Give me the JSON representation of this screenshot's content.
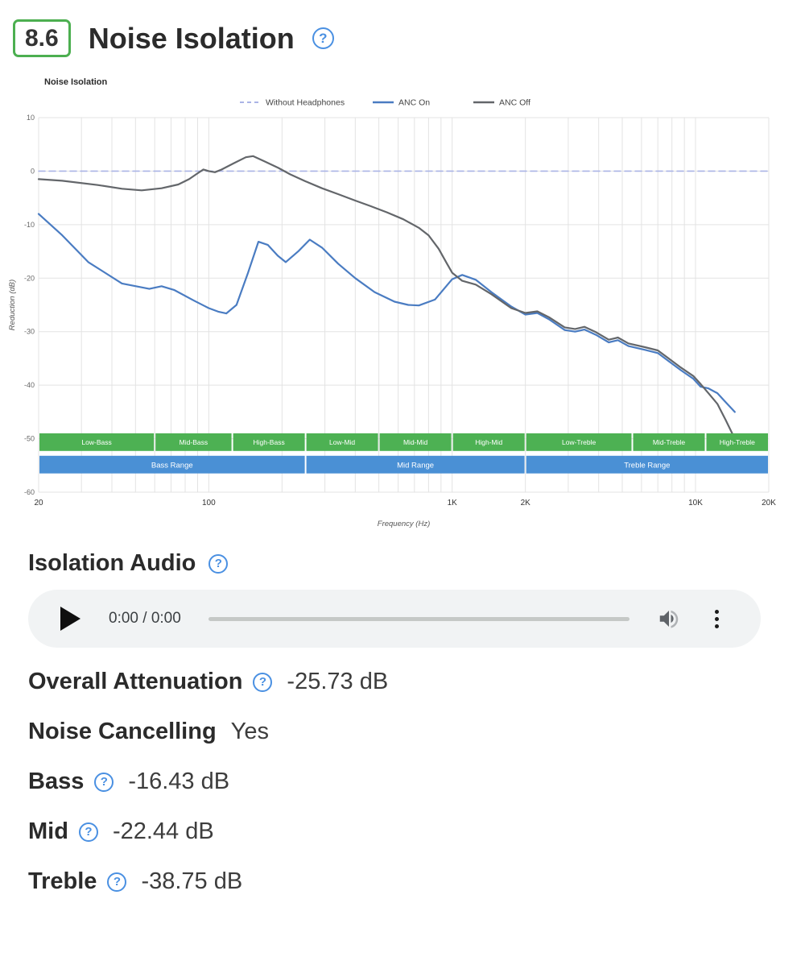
{
  "header": {
    "score": "8.6",
    "title": "Noise Isolation"
  },
  "icons": {
    "help_glyph": "?",
    "play": "play-triangle-icon",
    "volume": "volume-up-icon",
    "menu": "kebab-menu-icon"
  },
  "audio": {
    "title": "Isolation Audio",
    "time": "0:00 / 0:00"
  },
  "stats": {
    "rows": [
      {
        "label": "Overall Attenuation",
        "value": "-25.73 dB",
        "help": true
      },
      {
        "label": "Noise Cancelling",
        "value": "Yes",
        "help": false
      },
      {
        "label": "Bass",
        "value": "-16.43 dB",
        "help": true
      },
      {
        "label": "Mid",
        "value": "-22.44 dB",
        "help": true
      },
      {
        "label": "Treble",
        "value": "-38.75 dB",
        "help": true
      }
    ]
  },
  "colors": {
    "score_green": "#4caf50",
    "help_blue": "#4a90e2",
    "band_green": "#4db153",
    "band_blue": "#4a90d5",
    "anc_on": "#4a7cc2",
    "anc_off": "#63666a",
    "without_headphones": "#aab4e6",
    "grid": "#e3e3e3"
  },
  "chart_data": {
    "type": "line",
    "title": "Noise Isolation",
    "xlabel": "Frequency (Hz)",
    "ylabel": "Reduction (dB)",
    "x_scale": "log",
    "xlim": [
      20,
      20000
    ],
    "ylim": [
      -60,
      10
    ],
    "grid": true,
    "legend_position": "top",
    "y_ticks": [
      10,
      0,
      -10,
      -20,
      -30,
      -40,
      -50,
      -60
    ],
    "x_ticks": [
      {
        "label": "20",
        "f": 20
      },
      {
        "label": "100",
        "f": 100
      },
      {
        "label": "1K",
        "f": 1000
      },
      {
        "label": "2K",
        "f": 2000
      },
      {
        "label": "10K",
        "f": 10000
      },
      {
        "label": "20K",
        "f": 20000
      }
    ],
    "series": [
      {
        "name": "Without Headphones",
        "color": "#aab4e6",
        "dash": true,
        "width": 1.6,
        "points": [
          [
            20,
            0
          ],
          [
            20000,
            0
          ]
        ]
      },
      {
        "name": "ANC On",
        "color": "#4a7cc2",
        "dash": false,
        "width": 2.2,
        "points": [
          [
            20,
            -8
          ],
          [
            25,
            -12
          ],
          [
            32,
            -17
          ],
          [
            44,
            -21
          ],
          [
            57,
            -22
          ],
          [
            64,
            -21.5
          ],
          [
            72,
            -22.2
          ],
          [
            87,
            -24.2
          ],
          [
            100,
            -25.6
          ],
          [
            110,
            -26.3
          ],
          [
            118,
            -26.6
          ],
          [
            130,
            -25
          ],
          [
            145,
            -19
          ],
          [
            160,
            -13.2
          ],
          [
            175,
            -13.8
          ],
          [
            192,
            -15.8
          ],
          [
            207,
            -17
          ],
          [
            233,
            -15
          ],
          [
            260,
            -12.8
          ],
          [
            292,
            -14.3
          ],
          [
            340,
            -17.3
          ],
          [
            400,
            -20
          ],
          [
            480,
            -22.6
          ],
          [
            580,
            -24.4
          ],
          [
            660,
            -25
          ],
          [
            730,
            -25.1
          ],
          [
            850,
            -24
          ],
          [
            1000,
            -20.2
          ],
          [
            1100,
            -19.4
          ],
          [
            1250,
            -20.3
          ],
          [
            1450,
            -22.6
          ],
          [
            1750,
            -25.3
          ],
          [
            2000,
            -26.8
          ],
          [
            2240,
            -26.5
          ],
          [
            2500,
            -27.7
          ],
          [
            2900,
            -29.7
          ],
          [
            3200,
            -30
          ],
          [
            3500,
            -29.6
          ],
          [
            3900,
            -30.6
          ],
          [
            4400,
            -32
          ],
          [
            4800,
            -31.6
          ],
          [
            5300,
            -32.7
          ],
          [
            6200,
            -33.4
          ],
          [
            7000,
            -34
          ],
          [
            7700,
            -35.4
          ],
          [
            8700,
            -37.2
          ],
          [
            9800,
            -38.8
          ],
          [
            10500,
            -40.3
          ],
          [
            11300,
            -40.6
          ],
          [
            12300,
            -41.5
          ],
          [
            13200,
            -43
          ],
          [
            14500,
            -45
          ]
        ]
      },
      {
        "name": "ANC Off",
        "color": "#63666a",
        "dash": false,
        "width": 2.2,
        "points": [
          [
            20,
            -1.5
          ],
          [
            25,
            -1.8
          ],
          [
            35,
            -2.6
          ],
          [
            44,
            -3.3
          ],
          [
            53,
            -3.6
          ],
          [
            64,
            -3.2
          ],
          [
            75,
            -2.5
          ],
          [
            83,
            -1.5
          ],
          [
            90,
            -0.4
          ],
          [
            95,
            0.3
          ],
          [
            100,
            0
          ],
          [
            106,
            -0.2
          ],
          [
            113,
            0.3
          ],
          [
            127,
            1.5
          ],
          [
            142,
            2.6
          ],
          [
            152,
            2.8
          ],
          [
            170,
            1.8
          ],
          [
            193,
            0.6
          ],
          [
            216,
            -0.6
          ],
          [
            250,
            -1.9
          ],
          [
            292,
            -3.2
          ],
          [
            340,
            -4.3
          ],
          [
            400,
            -5.5
          ],
          [
            460,
            -6.5
          ],
          [
            540,
            -7.7
          ],
          [
            630,
            -9
          ],
          [
            730,
            -10.6
          ],
          [
            800,
            -12
          ],
          [
            880,
            -14.5
          ],
          [
            950,
            -17.2
          ],
          [
            1000,
            -19
          ],
          [
            1100,
            -20.5
          ],
          [
            1250,
            -21.2
          ],
          [
            1450,
            -23
          ],
          [
            1750,
            -25.6
          ],
          [
            2000,
            -26.5
          ],
          [
            2240,
            -26.2
          ],
          [
            2500,
            -27.3
          ],
          [
            2900,
            -29.2
          ],
          [
            3200,
            -29.5
          ],
          [
            3500,
            -29.1
          ],
          [
            3900,
            -30.1
          ],
          [
            4400,
            -31.5
          ],
          [
            4800,
            -31.1
          ],
          [
            5300,
            -32.2
          ],
          [
            6200,
            -32.9
          ],
          [
            7000,
            -33.5
          ],
          [
            7700,
            -34.9
          ],
          [
            8700,
            -36.7
          ],
          [
            9800,
            -38.3
          ],
          [
            10500,
            -39.8
          ],
          [
            11300,
            -41.5
          ],
          [
            12300,
            -43.5
          ],
          [
            13300,
            -46.5
          ],
          [
            14500,
            -50
          ]
        ]
      }
    ],
    "bands": {
      "green_color": "#4db153",
      "blue_color": "#4a90d5",
      "thirds_db": [
        -49,
        -52.3
      ],
      "ranges_db": [
        -53.2,
        -56.5
      ],
      "thirds": [
        {
          "label": "Low-Bass",
          "from": 20,
          "to": 60
        },
        {
          "label": "Mid-Bass",
          "from": 60,
          "to": 125
        },
        {
          "label": "High-Bass",
          "from": 125,
          "to": 250
        },
        {
          "label": "Low-Mid",
          "from": 250,
          "to": 500
        },
        {
          "label": "Mid-Mid",
          "from": 500,
          "to": 1000
        },
        {
          "label": "High-Mid",
          "from": 1000,
          "to": 2000
        },
        {
          "label": "Low-Treble",
          "from": 2000,
          "to": 5500
        },
        {
          "label": "Mid-Treble",
          "from": 5500,
          "to": 11000
        },
        {
          "label": "High-Treble",
          "from": 11000,
          "to": 20000
        }
      ],
      "ranges": [
        {
          "label": "Bass Range",
          "from": 20,
          "to": 250
        },
        {
          "label": "Mid Range",
          "from": 250,
          "to": 2000
        },
        {
          "label": "Treble Range",
          "from": 2000,
          "to": 20000
        }
      ]
    }
  }
}
